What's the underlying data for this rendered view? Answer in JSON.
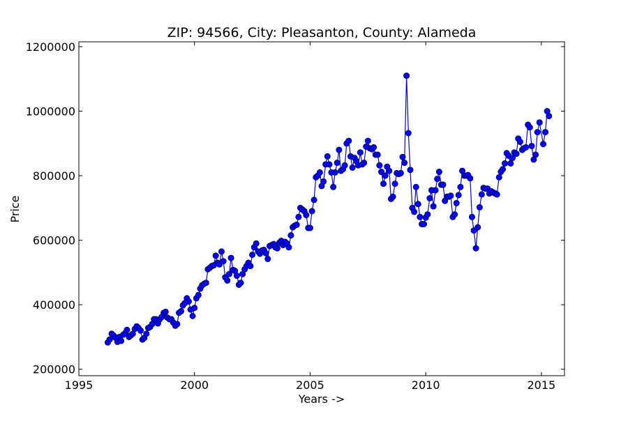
{
  "chart_data": {
    "type": "line",
    "title": "ZIP: 94566, City: Pleasanton, County: Alameda",
    "xlabel": "Years ->",
    "ylabel": "Price",
    "xlim": [
      1995,
      2016
    ],
    "ylim": [
      180000,
      1215000
    ],
    "xticks": [
      1995,
      2000,
      2005,
      2010,
      2015
    ],
    "yticks": [
      200000,
      400000,
      600000,
      800000,
      1000000,
      1200000
    ],
    "grid": false,
    "legend": "none",
    "series": [
      {
        "color": "#0000ff",
        "marker": "circle",
        "points": [
          [
            1996.25,
            283000
          ],
          [
            1996.33,
            292000
          ],
          [
            1996.42,
            310000
          ],
          [
            1996.5,
            305000
          ],
          [
            1996.58,
            298000
          ],
          [
            1996.67,
            285000
          ],
          [
            1996.75,
            300000
          ],
          [
            1996.83,
            288000
          ],
          [
            1996.92,
            307000
          ],
          [
            1997.0,
            312000
          ],
          [
            1997.08,
            322000
          ],
          [
            1997.17,
            300000
          ],
          [
            1997.25,
            305000
          ],
          [
            1997.33,
            310000
          ],
          [
            1997.42,
            325000
          ],
          [
            1997.5,
            333000
          ],
          [
            1997.58,
            328000
          ],
          [
            1997.67,
            320000
          ],
          [
            1997.75,
            292000
          ],
          [
            1997.83,
            297000
          ],
          [
            1997.92,
            310000
          ],
          [
            1998.0,
            328000
          ],
          [
            1998.08,
            331000
          ],
          [
            1998.17,
            340000
          ],
          [
            1998.25,
            355000
          ],
          [
            1998.33,
            355000
          ],
          [
            1998.42,
            342000
          ],
          [
            1998.5,
            355000
          ],
          [
            1998.58,
            362000
          ],
          [
            1998.67,
            375000
          ],
          [
            1998.75,
            378000
          ],
          [
            1998.83,
            360000
          ],
          [
            1998.92,
            355000
          ],
          [
            1999.0,
            355000
          ],
          [
            1999.08,
            345000
          ],
          [
            1999.17,
            335000
          ],
          [
            1999.25,
            340000
          ],
          [
            1999.33,
            375000
          ],
          [
            1999.42,
            380000
          ],
          [
            1999.5,
            398000
          ],
          [
            1999.58,
            405000
          ],
          [
            1999.67,
            420000
          ],
          [
            1999.75,
            410000
          ],
          [
            1999.83,
            385000
          ],
          [
            1999.92,
            365000
          ],
          [
            2000.0,
            390000
          ],
          [
            2000.08,
            420000
          ],
          [
            2000.17,
            430000
          ],
          [
            2000.25,
            450000
          ],
          [
            2000.33,
            460000
          ],
          [
            2000.42,
            465000
          ],
          [
            2000.5,
            468000
          ],
          [
            2000.58,
            510000
          ],
          [
            2000.67,
            515000
          ],
          [
            2000.75,
            520000
          ],
          [
            2000.83,
            522000
          ],
          [
            2000.92,
            552000
          ],
          [
            2001.0,
            530000
          ],
          [
            2001.08,
            525000
          ],
          [
            2001.17,
            565000
          ],
          [
            2001.25,
            535000
          ],
          [
            2001.33,
            485000
          ],
          [
            2001.42,
            475000
          ],
          [
            2001.5,
            495000
          ],
          [
            2001.58,
            545000
          ],
          [
            2001.67,
            508000
          ],
          [
            2001.75,
            505000
          ],
          [
            2001.83,
            490000
          ],
          [
            2001.92,
            462000
          ],
          [
            2002.0,
            468000
          ],
          [
            2002.08,
            495000
          ],
          [
            2002.17,
            510000
          ],
          [
            2002.25,
            520000
          ],
          [
            2002.33,
            530000
          ],
          [
            2002.42,
            520000
          ],
          [
            2002.5,
            555000
          ],
          [
            2002.58,
            578000
          ],
          [
            2002.67,
            590000
          ],
          [
            2002.75,
            565000
          ],
          [
            2002.83,
            558000
          ],
          [
            2002.92,
            568000
          ],
          [
            2003.0,
            570000
          ],
          [
            2003.08,
            560000
          ],
          [
            2003.17,
            542000
          ],
          [
            2003.25,
            582000
          ],
          [
            2003.33,
            585000
          ],
          [
            2003.42,
            588000
          ],
          [
            2003.5,
            578000
          ],
          [
            2003.58,
            575000
          ],
          [
            2003.67,
            592000
          ],
          [
            2003.75,
            598000
          ],
          [
            2003.83,
            585000
          ],
          [
            2003.92,
            595000
          ],
          [
            2004.0,
            590000
          ],
          [
            2004.08,
            578000
          ],
          [
            2004.17,
            615000
          ],
          [
            2004.25,
            640000
          ],
          [
            2004.33,
            645000
          ],
          [
            2004.42,
            648000
          ],
          [
            2004.5,
            672000
          ],
          [
            2004.58,
            700000
          ],
          [
            2004.67,
            695000
          ],
          [
            2004.75,
            690000
          ],
          [
            2004.83,
            678000
          ],
          [
            2004.92,
            638000
          ],
          [
            2005.0,
            638000
          ],
          [
            2005.08,
            690000
          ],
          [
            2005.17,
            725000
          ],
          [
            2005.25,
            795000
          ],
          [
            2005.33,
            800000
          ],
          [
            2005.42,
            810000
          ],
          [
            2005.5,
            768000
          ],
          [
            2005.58,
            782000
          ],
          [
            2005.67,
            835000
          ],
          [
            2005.75,
            860000
          ],
          [
            2005.83,
            835000
          ],
          [
            2005.92,
            810000
          ],
          [
            2006.0,
            765000
          ],
          [
            2006.08,
            810000
          ],
          [
            2006.17,
            840000
          ],
          [
            2006.25,
            880000
          ],
          [
            2006.33,
            815000
          ],
          [
            2006.42,
            820000
          ],
          [
            2006.5,
            832000
          ],
          [
            2006.58,
            900000
          ],
          [
            2006.67,
            908000
          ],
          [
            2006.75,
            860000
          ],
          [
            2006.83,
            825000
          ],
          [
            2006.92,
            855000
          ],
          [
            2007.0,
            845000
          ],
          [
            2007.08,
            832000
          ],
          [
            2007.17,
            872000
          ],
          [
            2007.25,
            835000
          ],
          [
            2007.33,
            840000
          ],
          [
            2007.42,
            890000
          ],
          [
            2007.5,
            908000
          ],
          [
            2007.58,
            885000
          ],
          [
            2007.67,
            882000
          ],
          [
            2007.75,
            888000
          ],
          [
            2007.83,
            865000
          ],
          [
            2007.92,
            865000
          ],
          [
            2008.0,
            832000
          ],
          [
            2008.08,
            812000
          ],
          [
            2008.17,
            775000
          ],
          [
            2008.25,
            800000
          ],
          [
            2008.33,
            828000
          ],
          [
            2008.42,
            815000
          ],
          [
            2008.5,
            728000
          ],
          [
            2008.58,
            735000
          ],
          [
            2008.67,
            775000
          ],
          [
            2008.75,
            808000
          ],
          [
            2008.83,
            805000
          ],
          [
            2008.92,
            808000
          ],
          [
            2009.0,
            858000
          ],
          [
            2009.08,
            840000
          ],
          [
            2009.17,
            1110000
          ],
          [
            2009.25,
            932000
          ],
          [
            2009.33,
            818000
          ],
          [
            2009.42,
            700000
          ],
          [
            2009.5,
            688000
          ],
          [
            2009.58,
            765000
          ],
          [
            2009.67,
            712000
          ],
          [
            2009.75,
            672000
          ],
          [
            2009.83,
            650000
          ],
          [
            2009.92,
            650000
          ],
          [
            2010.0,
            670000
          ],
          [
            2010.08,
            680000
          ],
          [
            2010.17,
            730000
          ],
          [
            2010.25,
            755000
          ],
          [
            2010.33,
            705000
          ],
          [
            2010.42,
            755000
          ],
          [
            2010.5,
            790000
          ],
          [
            2010.58,
            812000
          ],
          [
            2010.67,
            772000
          ],
          [
            2010.75,
            772000
          ],
          [
            2010.83,
            722000
          ],
          [
            2010.92,
            735000
          ],
          [
            2011.0,
            735000
          ],
          [
            2011.08,
            738000
          ],
          [
            2011.17,
            672000
          ],
          [
            2011.25,
            680000
          ],
          [
            2011.33,
            715000
          ],
          [
            2011.42,
            740000
          ],
          [
            2011.5,
            765000
          ],
          [
            2011.58,
            815000
          ],
          [
            2011.67,
            800000
          ],
          [
            2011.75,
            800000
          ],
          [
            2011.83,
            802000
          ],
          [
            2011.92,
            792000
          ],
          [
            2012.0,
            672000
          ],
          [
            2012.08,
            630000
          ],
          [
            2012.17,
            575000
          ],
          [
            2012.25,
            640000
          ],
          [
            2012.33,
            702000
          ],
          [
            2012.42,
            742000
          ],
          [
            2012.5,
            762000
          ],
          [
            2012.58,
            760000
          ],
          [
            2012.67,
            760000
          ],
          [
            2012.75,
            745000
          ],
          [
            2012.83,
            752000
          ],
          [
            2012.92,
            748000
          ],
          [
            2013.0,
            745000
          ],
          [
            2013.08,
            742000
          ],
          [
            2013.17,
            795000
          ],
          [
            2013.25,
            812000
          ],
          [
            2013.33,
            820000
          ],
          [
            2013.42,
            838000
          ],
          [
            2013.5,
            870000
          ],
          [
            2013.58,
            862000
          ],
          [
            2013.67,
            838000
          ],
          [
            2013.75,
            855000
          ],
          [
            2013.83,
            872000
          ],
          [
            2013.92,
            868000
          ],
          [
            2014.0,
            915000
          ],
          [
            2014.08,
            905000
          ],
          [
            2014.17,
            880000
          ],
          [
            2014.25,
            885000
          ],
          [
            2014.33,
            888000
          ],
          [
            2014.42,
            958000
          ],
          [
            2014.5,
            950000
          ],
          [
            2014.58,
            892000
          ],
          [
            2014.67,
            850000
          ],
          [
            2014.75,
            865000
          ],
          [
            2014.83,
            935000
          ],
          [
            2014.92,
            965000
          ],
          [
            2015.08,
            898000
          ],
          [
            2015.17,
            935000
          ],
          [
            2015.25,
            1000000
          ],
          [
            2015.33,
            985000
          ]
        ]
      }
    ]
  }
}
